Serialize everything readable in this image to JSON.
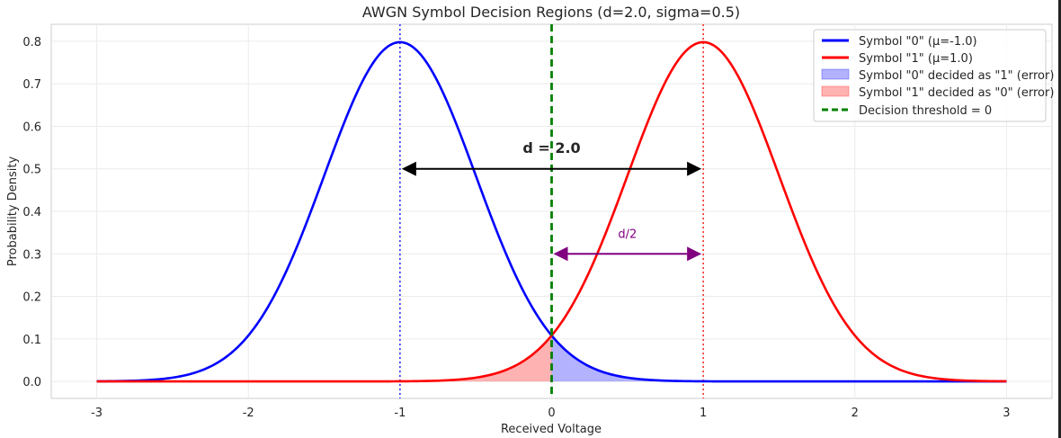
{
  "chart_data": {
    "type": "line",
    "title": "AWGN Symbol Decision Regions (d=2.0, sigma=0.5)",
    "xlabel": "Received Voltage",
    "ylabel": "Probability Density",
    "xlim": [
      -3.3,
      3.3
    ],
    "ylim": [
      -0.04,
      0.84
    ],
    "x_ticks": [
      "-3",
      "-2",
      "-1",
      "0",
      "1",
      "2",
      "3"
    ],
    "x_tick_values": [
      -3,
      -2,
      -1,
      0,
      1,
      2,
      3
    ],
    "y_ticks": [
      "0.0",
      "0.1",
      "0.2",
      "0.3",
      "0.4",
      "0.5",
      "0.6",
      "0.7",
      "0.8"
    ],
    "y_tick_values": [
      0,
      0.1,
      0.2,
      0.3,
      0.4,
      0.5,
      0.6,
      0.7,
      0.8
    ],
    "grid": true,
    "legend_position": "top-right",
    "sigma": 0.5,
    "threshold": 0,
    "series": [
      {
        "name": "Symbol \"0\" (μ=-1.0)",
        "kind": "line",
        "mean": -1.0,
        "color": "#0000ff"
      },
      {
        "name": "Symbol \"1\" (μ=1.0)",
        "kind": "line",
        "mean": 1.0,
        "color": "#ff0000"
      },
      {
        "name": "Symbol \"0\" decided as \"1\" (error)",
        "kind": "fill",
        "mean": -1.0,
        "range": [
          0,
          3
        ],
        "color": "#0000ff"
      },
      {
        "name": "Symbol \"1\" decided as \"0\" (error)",
        "kind": "fill",
        "mean": 1.0,
        "range": [
          -3,
          0
        ],
        "color": "#ff0000"
      },
      {
        "name": "Decision threshold = 0",
        "kind": "vline",
        "x": 0,
        "color": "#008000"
      }
    ],
    "reference_lines": [
      {
        "x": -1,
        "color": "#0000ff"
      },
      {
        "x": 1,
        "color": "#ff0000"
      }
    ],
    "annotations": [
      {
        "text": "d = 2.0",
        "x": 0.0,
        "y": 0.55,
        "arrow_from": -1,
        "arrow_to": 1,
        "arrow_y": 0.5,
        "color": "#000000"
      },
      {
        "text": "d/2",
        "x": 0.5,
        "y": 0.35,
        "arrow_from": 0,
        "arrow_to": 1,
        "arrow_y": 0.3,
        "color": "#800080"
      }
    ]
  }
}
